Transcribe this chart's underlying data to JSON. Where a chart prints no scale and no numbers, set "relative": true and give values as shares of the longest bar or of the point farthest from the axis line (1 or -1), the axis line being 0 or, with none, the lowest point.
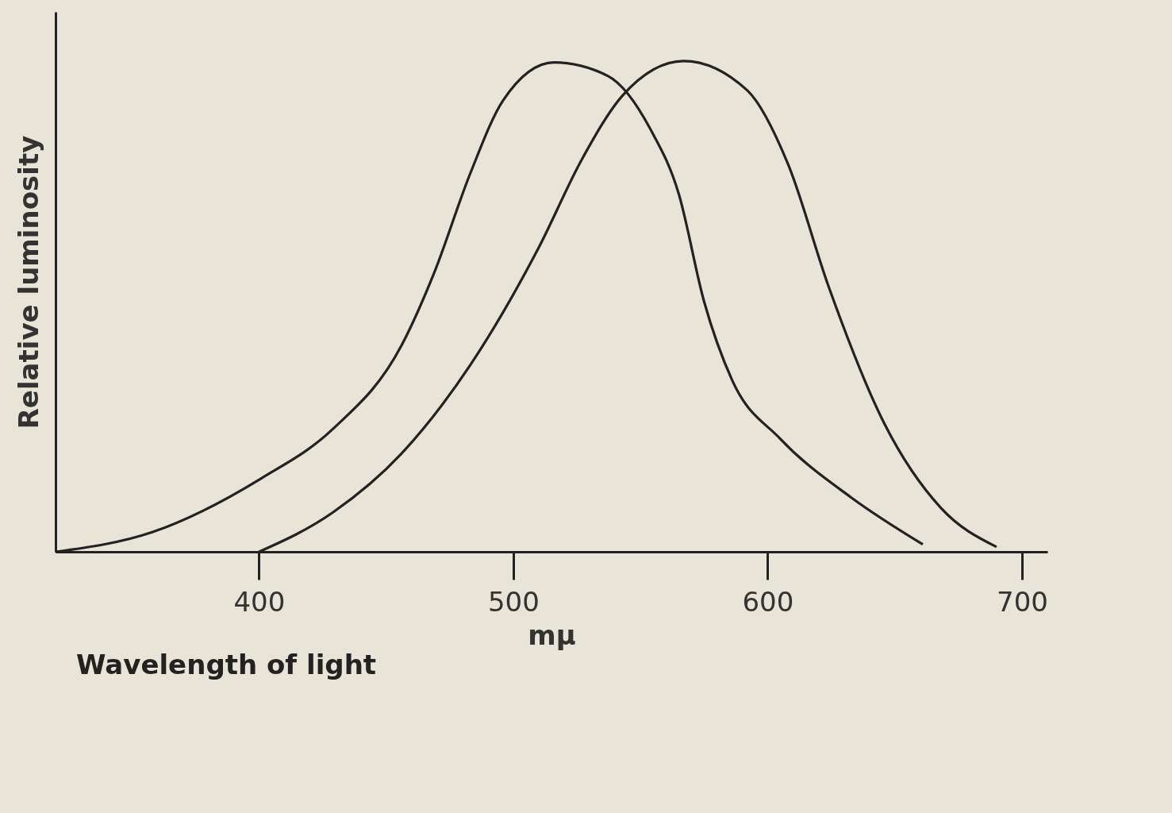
{
  "chart_data": {
    "type": "line",
    "relative": true,
    "xlabel": "mμ",
    "ylabel": "Relative luminosity",
    "annotations": [
      "Wavelength of light"
    ],
    "xlim": [
      320,
      710
    ],
    "xticks": [
      400,
      500,
      600,
      700
    ],
    "grid": false,
    "marker": "none",
    "line_style": "solid",
    "series": [
      {
        "color": "#222222",
        "x": [
          320,
          358,
          401,
          429,
          456,
          469,
          483,
          496,
          516,
          537,
          554,
          565,
          575,
          586,
          605,
          633,
          661
        ],
        "values": [
          0,
          0.04,
          0.15,
          0.25,
          0.42,
          0.57,
          0.77,
          0.92,
          0.997,
          0.97,
          0.86,
          0.73,
          0.51,
          0.35,
          0.23,
          0.11,
          0.015
        ]
      },
      {
        "color": "#222222",
        "x": [
          400,
          429,
          456,
          483,
          510,
          527,
          543,
          567,
          592,
          608,
          624,
          646,
          668,
          690
        ],
        "values": [
          0,
          0.08,
          0.2,
          0.38,
          0.62,
          0.8,
          0.93,
          1.0,
          0.94,
          0.79,
          0.54,
          0.26,
          0.09,
          0.01
        ]
      }
    ]
  }
}
